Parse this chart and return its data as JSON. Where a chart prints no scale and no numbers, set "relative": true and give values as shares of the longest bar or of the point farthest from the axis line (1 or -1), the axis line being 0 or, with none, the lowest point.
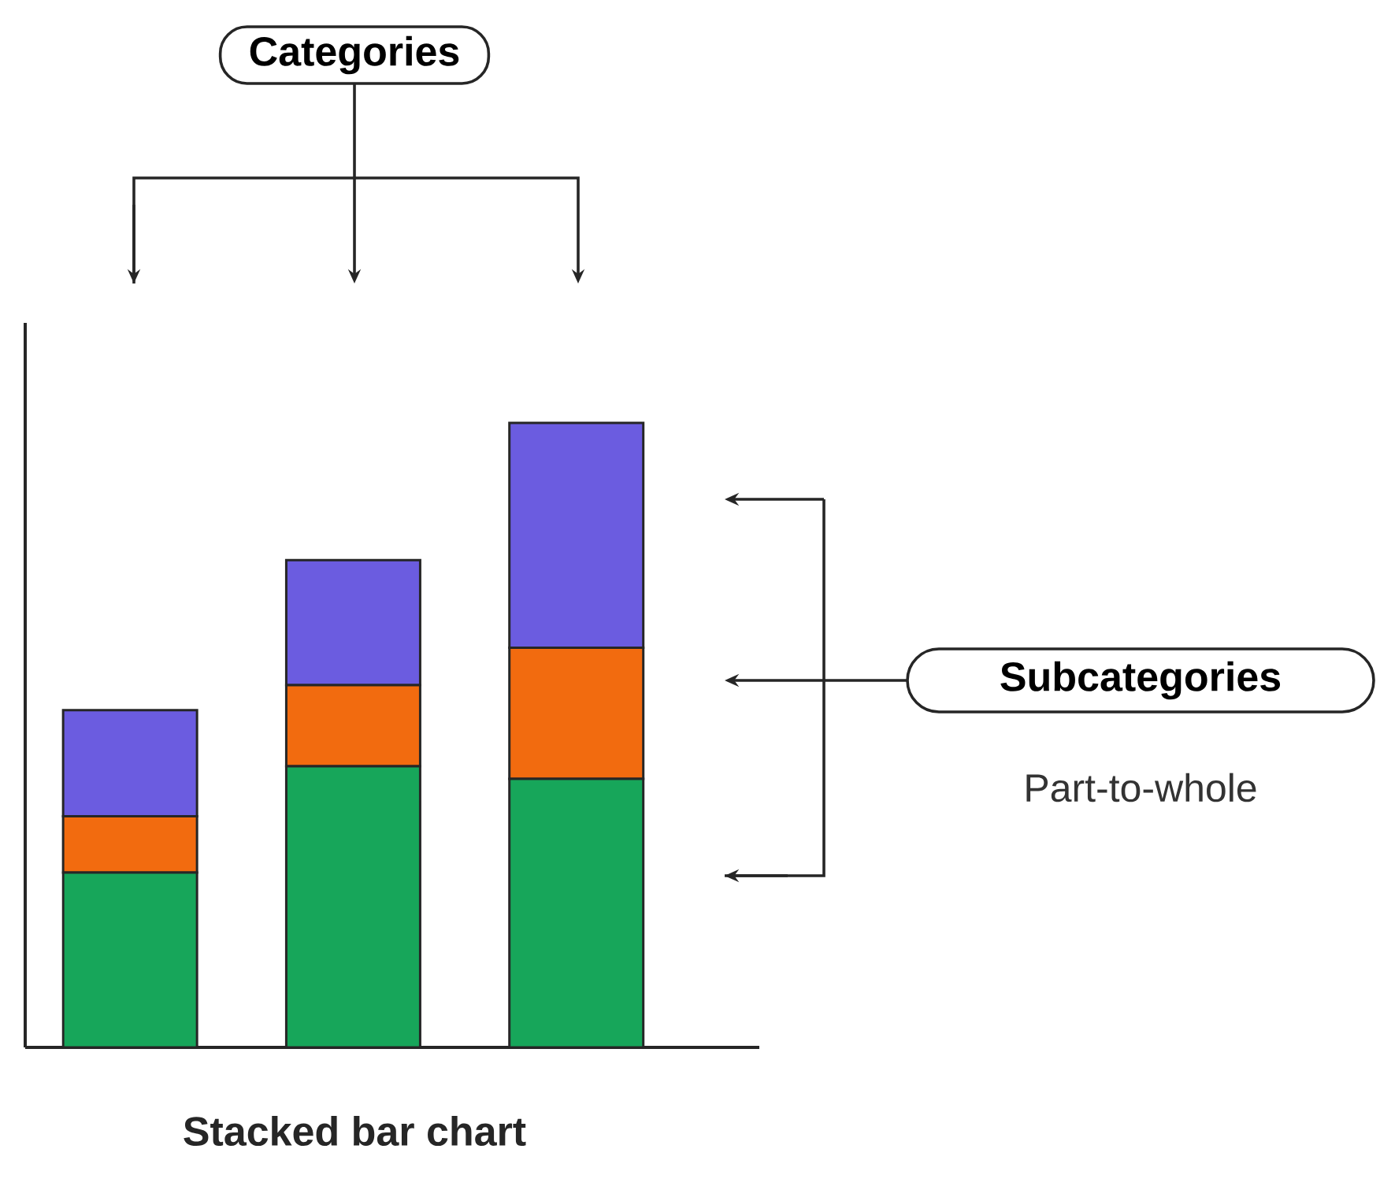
{
  "chart_data": {
    "type": "bar",
    "stacked": true,
    "relative": true,
    "title": "Stacked bar chart",
    "categories": [
      null,
      null,
      null
    ],
    "series": [
      {
        "color": "#17a65a",
        "values": [
          0.28,
          0.45,
          0.43
        ]
      },
      {
        "color": "#f26b0f",
        "values": [
          0.09,
          0.13,
          0.21
        ]
      },
      {
        "color": "#6b5ce0",
        "values": [
          0.17,
          0.2,
          0.36
        ]
      }
    ],
    "annotations": [
      "Categories",
      "Subcategories",
      "Part-to-whole"
    ]
  }
}
